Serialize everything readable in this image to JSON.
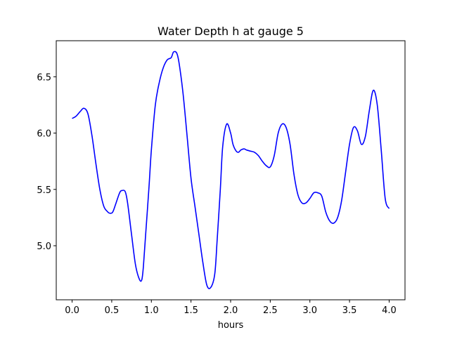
{
  "chart_data": {
    "type": "line",
    "title": "Water Depth h at gauge 5",
    "xlabel": "hours",
    "ylabel": "",
    "xlim": [
      -0.2,
      4.2
    ],
    "ylim": [
      4.52,
      6.82
    ],
    "xticks": [
      0.0,
      0.5,
      1.0,
      1.5,
      2.0,
      2.5,
      3.0,
      3.5,
      4.0
    ],
    "xtick_labels": [
      "0.0",
      "0.5",
      "1.0",
      "1.5",
      "2.0",
      "2.5",
      "3.0",
      "3.5",
      "4.0"
    ],
    "yticks": [
      5.0,
      5.5,
      6.0,
      6.5
    ],
    "ytick_labels": [
      "5.0",
      "5.5",
      "6.0",
      "6.5"
    ],
    "grid": false,
    "series": [
      {
        "color": "#0000ff",
        "x": [
          0.0,
          0.05,
          0.1,
          0.15,
          0.2,
          0.25,
          0.3,
          0.35,
          0.4,
          0.45,
          0.47,
          0.5,
          0.52,
          0.55,
          0.6,
          0.63,
          0.67,
          0.7,
          0.75,
          0.8,
          0.85,
          0.88,
          0.9,
          0.93,
          0.97,
          1.0,
          1.05,
          1.1,
          1.15,
          1.2,
          1.25,
          1.28,
          1.32,
          1.35,
          1.4,
          1.45,
          1.5,
          1.55,
          1.6,
          1.65,
          1.7,
          1.75,
          1.8,
          1.83,
          1.87,
          1.9,
          1.95,
          2.0,
          2.03,
          2.07,
          2.1,
          2.13,
          2.17,
          2.2,
          2.25,
          2.3,
          2.35,
          2.4,
          2.45,
          2.5,
          2.55,
          2.6,
          2.65,
          2.7,
          2.75,
          2.8,
          2.85,
          2.9,
          2.95,
          3.0,
          3.05,
          3.1,
          3.15,
          3.2,
          3.25,
          3.3,
          3.35,
          3.4,
          3.45,
          3.5,
          3.55,
          3.6,
          3.65,
          3.7,
          3.75,
          3.8,
          3.85,
          3.9,
          3.95,
          4.0
        ],
        "y": [
          6.13,
          6.15,
          6.19,
          6.22,
          6.17,
          5.98,
          5.73,
          5.5,
          5.35,
          5.3,
          5.29,
          5.29,
          5.31,
          5.37,
          5.47,
          5.49,
          5.48,
          5.38,
          5.1,
          4.83,
          4.7,
          4.7,
          4.82,
          5.12,
          5.52,
          5.85,
          6.25,
          6.45,
          6.58,
          6.65,
          6.67,
          6.72,
          6.71,
          6.62,
          6.35,
          5.98,
          5.6,
          5.35,
          5.1,
          4.85,
          4.65,
          4.63,
          4.75,
          5.05,
          5.5,
          5.88,
          6.08,
          6.0,
          5.9,
          5.84,
          5.83,
          5.85,
          5.86,
          5.85,
          5.84,
          5.83,
          5.8,
          5.75,
          5.71,
          5.7,
          5.8,
          6.0,
          6.08,
          6.05,
          5.9,
          5.63,
          5.45,
          5.38,
          5.38,
          5.42,
          5.47,
          5.47,
          5.44,
          5.3,
          5.22,
          5.2,
          5.25,
          5.4,
          5.65,
          5.9,
          6.05,
          6.02,
          5.9,
          5.97,
          6.2,
          6.38,
          6.25,
          5.85,
          5.42,
          5.33
        ]
      }
    ]
  }
}
